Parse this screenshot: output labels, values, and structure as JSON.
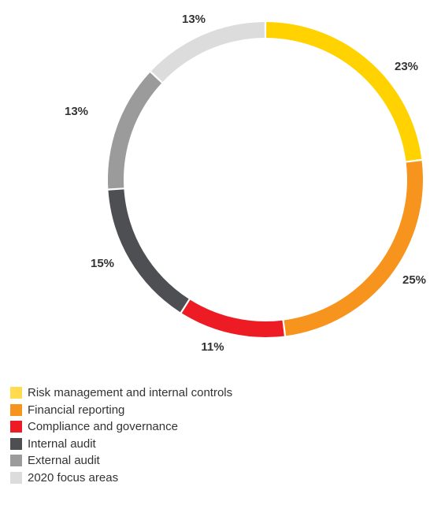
{
  "chart_data": {
    "type": "pie",
    "categories": [
      "Risk management and internal controls",
      "Financial reporting",
      "Compliance and governance",
      "Internal audit",
      "External audit",
      "2020 focus areas"
    ],
    "values": [
      23,
      25,
      11,
      15,
      13,
      13
    ],
    "value_labels": [
      "23%",
      "25%",
      "11%",
      "15%",
      "13%",
      "13%"
    ],
    "colors": [
      "#ffd200",
      "#f7941d",
      "#ed1c24",
      "#4d4f53",
      "#9b9b9b",
      "#dcdcdc"
    ],
    "legend_colors": [
      "#ffdb4d",
      "#f7941d",
      "#ed1c24",
      "#4d4f53",
      "#9b9b9b",
      "#dcdcdc"
    ],
    "donut": true,
    "legend_position": "bottom-left"
  }
}
